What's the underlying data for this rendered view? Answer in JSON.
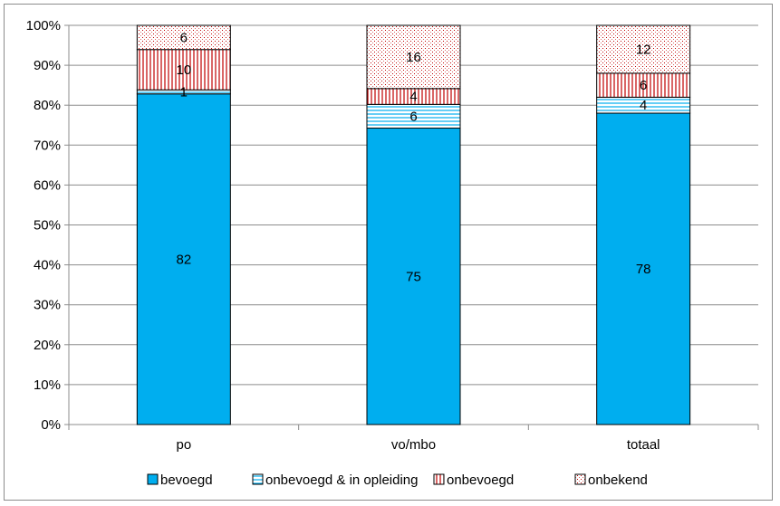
{
  "chart_data": {
    "type": "bar",
    "stacked": true,
    "percent_stacked": true,
    "categories": [
      "po",
      "vo/mbo",
      "totaal"
    ],
    "series": [
      {
        "name": "bevoegd",
        "values": [
          82,
          75,
          78
        ],
        "color": "#00aeef",
        "pattern": "solid"
      },
      {
        "name": "onbevoegd & in opleiding",
        "values": [
          1,
          6,
          4
        ],
        "color": "#00aeef",
        "pattern": "horizontal-lines"
      },
      {
        "name": "onbevoegd",
        "values": [
          10,
          4,
          6
        ],
        "color": "#c00000",
        "pattern": "vertical-lines"
      },
      {
        "name": "onbekend",
        "values": [
          6,
          16,
          12
        ],
        "color": "#c00000",
        "pattern": "dots"
      }
    ],
    "ylim": [
      0,
      100
    ],
    "yticks": [
      "0%",
      "10%",
      "20%",
      "30%",
      "40%",
      "50%",
      "60%",
      "70%",
      "80%",
      "90%",
      "100%"
    ],
    "grid": true,
    "legend_position": "bottom"
  }
}
